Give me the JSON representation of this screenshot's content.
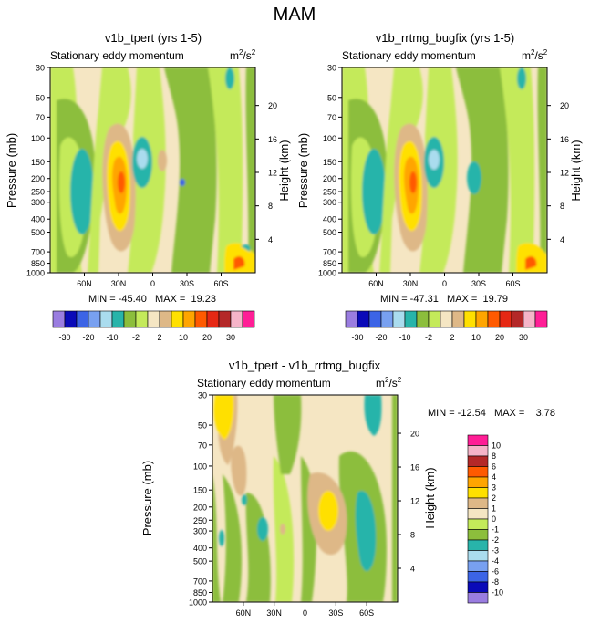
{
  "figure_title": "MAM",
  "colors": {
    "absolute_scale": [
      "#9a7de0",
      "#0a0ab8",
      "#3c64e6",
      "#78a0f0",
      "#aadcee",
      "#28b4aa",
      "#8cbe3c",
      "#c4ea5a",
      "#f5e6c3",
      "#deb887",
      "#ffe000",
      "#ffa500",
      "#ff5a00",
      "#e62814",
      "#b42828",
      "#f5b4c8",
      "#ff1e96"
    ],
    "difference_scale": [
      "#9a7de0",
      "#0a0ab8",
      "#3c64e6",
      "#78a0f0",
      "#aadcee",
      "#28b4aa",
      "#8cbe3c",
      "#c4ea5a",
      "#f5e6c3",
      "#deb887",
      "#ffe000",
      "#ffa500",
      "#ff5a00",
      "#b42828",
      "#f5b4c8",
      "#ff1e96"
    ]
  },
  "chart_data": [
    {
      "type": "contour",
      "title": "v1b_tpert (yrs 1-5)",
      "subtitle": "Stationary eddy momentum",
      "units_prefix": "m",
      "units_exp1": "2",
      "units_mid": "/s",
      "units_exp2": "2",
      "ylabel": "Pressure (mb)",
      "ylabel_right": "Height (km)",
      "x_ticks": [
        "60N",
        "30N",
        "0",
        "30S",
        "60S"
      ],
      "x_tick_values": [
        60,
        30,
        0,
        -30,
        -60
      ],
      "xlim": [
        90,
        -90
      ],
      "y_ticks": [
        "30",
        "50",
        "70",
        "100",
        "150",
        "200",
        "250",
        "300",
        "400",
        "500",
        "700",
        "850",
        "1000"
      ],
      "y_tick_values": [
        30,
        50,
        70,
        100,
        150,
        200,
        250,
        300,
        400,
        500,
        700,
        850,
        1000
      ],
      "ylim": [
        30,
        1000
      ],
      "height_ticks": [
        "20",
        "16",
        "12",
        "8",
        "4"
      ],
      "height_tick_values": [
        20,
        16,
        12,
        8,
        4
      ],
      "stats": "MIN = -45.40   MAX =  19.23",
      "min": -45.4,
      "max": 19.23
    },
    {
      "type": "contour",
      "title": "v1b_rrtmg_bugfix (yrs 1-5)",
      "subtitle": "Stationary eddy momentum",
      "units_prefix": "m",
      "units_exp1": "2",
      "units_mid": "/s",
      "units_exp2": "2",
      "ylabel": "Pressure (mb)",
      "ylabel_right": "Height (km)",
      "x_ticks": [
        "60N",
        "30N",
        "0",
        "30S",
        "60S"
      ],
      "x_tick_values": [
        60,
        30,
        0,
        -30,
        -60
      ],
      "xlim": [
        90,
        -90
      ],
      "y_ticks": [
        "30",
        "50",
        "70",
        "100",
        "150",
        "200",
        "250",
        "300",
        "400",
        "500",
        "700",
        "850",
        "1000"
      ],
      "y_tick_values": [
        30,
        50,
        70,
        100,
        150,
        200,
        250,
        300,
        400,
        500,
        700,
        850,
        1000
      ],
      "ylim": [
        30,
        1000
      ],
      "height_ticks": [
        "20",
        "16",
        "12",
        "8",
        "4"
      ],
      "height_tick_values": [
        20,
        16,
        12,
        8,
        4
      ],
      "stats": "MIN = -47.31   MAX =  19.79",
      "min": -47.31,
      "max": 19.79
    },
    {
      "type": "contour",
      "title": "v1b_tpert - v1b_rrtmg_bugfix",
      "subtitle": "Stationary eddy momentum",
      "units_prefix": "m",
      "units_exp1": "2",
      "units_mid": "/s",
      "units_exp2": "2",
      "ylabel": "Pressure (mb)",
      "ylabel_right": "Height (km)",
      "x_ticks": [
        "60N",
        "30N",
        "0",
        "30S",
        "60S"
      ],
      "x_tick_values": [
        60,
        30,
        0,
        -30,
        -60
      ],
      "xlim": [
        90,
        -90
      ],
      "y_ticks": [
        "30",
        "50",
        "70",
        "100",
        "150",
        "200",
        "250",
        "300",
        "400",
        "500",
        "700",
        "850",
        "1000"
      ],
      "y_tick_values": [
        30,
        50,
        70,
        100,
        150,
        200,
        250,
        300,
        400,
        500,
        700,
        850,
        1000
      ],
      "ylim": [
        30,
        1000
      ],
      "height_ticks": [
        "20",
        "16",
        "12",
        "8",
        "4"
      ],
      "height_tick_values": [
        20,
        16,
        12,
        8,
        4
      ],
      "stats": "MIN = -12.54   MAX =    3.78",
      "min": -12.54,
      "max": 3.78
    }
  ],
  "colorbar_top": {
    "labels": [
      "-30",
      "-20",
      "-10",
      "-2",
      "2",
      "10",
      "20",
      "30"
    ],
    "levels": [
      -30,
      -20,
      -10,
      -2,
      2,
      10,
      20,
      30
    ]
  },
  "colorbar_diff": {
    "labels": [
      "10",
      "8",
      "6",
      "4",
      "3",
      "2",
      "1",
      "0",
      "-1",
      "-2",
      "-3",
      "-4",
      "-6",
      "-8",
      "-10"
    ],
    "levels": [
      10,
      8,
      6,
      4,
      3,
      2,
      1,
      0,
      -1,
      -2,
      -3,
      -4,
      -6,
      -8,
      -10
    ]
  }
}
